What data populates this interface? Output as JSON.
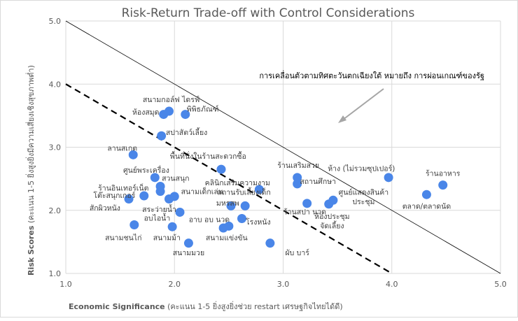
{
  "chart_data": {
    "type": "scatter",
    "title": "Risk-Return Trade-off with Control Considerations",
    "xlabel": {
      "bold": "Economic Significance",
      "rest": " (คะแนน 1-5 ยิ่งสูงยิ่งช่วย restart เศรษฐกิจไทยได้ดี)"
    },
    "ylabel": {
      "bold": "Risk Scores",
      "rest": " (คะแนน 1-5 ยิ่งสูงยิ่งมีความเสี่ยงเชิงสุขภาพต่ำ)"
    },
    "xlim": [
      1,
      5
    ],
    "ylim": [
      1,
      5
    ],
    "xticks": [
      "1.0",
      "2.0",
      "3.0",
      "4.0",
      "5.0"
    ],
    "yticks": [
      "1.0",
      "2.0",
      "3.0",
      "4.0",
      "5.0"
    ],
    "grid": true,
    "marker_color": "#4A86E8",
    "annotation": "การเคลื่อนตัวตามทิศตะวันตกเฉียงใต้ หมายถึง การผ่อนเกณฑ์ของรัฐ",
    "lines": [
      {
        "style": "solid",
        "from": [
          1,
          5
        ],
        "to": [
          5,
          1
        ]
      },
      {
        "style": "dashed",
        "from": [
          1,
          4
        ],
        "to": [
          4,
          1
        ]
      }
    ],
    "points": [
      {
        "x": 1.9,
        "y": 3.52,
        "label": "ห้องสมุด",
        "anchor": "end",
        "lx": 1.86,
        "ly": 3.56
      },
      {
        "x": 1.95,
        "y": 3.57,
        "label": "สนามกอล์ฟ ไดรฟ์",
        "anchor": "middle",
        "lx": 1.97,
        "ly": 3.76
      },
      {
        "x": 2.1,
        "y": 3.52,
        "label": "พิพิธภัณฑ์",
        "anchor": "middle",
        "lx": 2.26,
        "ly": 3.61
      },
      {
        "x": 1.88,
        "y": 3.18,
        "label": "สปาสัตว์เลี้ยง",
        "anchor": "start",
        "lx": 1.92,
        "ly": 3.24
      },
      {
        "x": 1.62,
        "y": 2.88,
        "label": "ลานสเกต",
        "anchor": "middle",
        "lx": 1.52,
        "ly": 2.99
      },
      {
        "x": 2.43,
        "y": 2.65,
        "label": "พื้นที่นั่งในร้านสะดวกซื้อ",
        "anchor": "middle",
        "lx": 2.31,
        "ly": 2.86
      },
      {
        "x": 1.82,
        "y": 2.52,
        "label": "ศูนย์พระเครื่อง",
        "anchor": "middle",
        "lx": 1.74,
        "ly": 2.64
      },
      {
        "x": 1.87,
        "y": 2.38,
        "label": "สวนสนุก",
        "anchor": "middle",
        "lx": 2.01,
        "ly": 2.51
      },
      {
        "x": 1.72,
        "y": 2.23,
        "label": "ร้านอินเทอร์เน็ต",
        "anchor": "middle",
        "lx": 1.53,
        "ly": 2.36
      },
      {
        "x": 1.87,
        "y": 2.3,
        "label": "โต๊ะสนุกเกอร์",
        "anchor": "end",
        "lx": 1.64,
        "ly": 2.24
      },
      {
        "x": 1.95,
        "y": 2.18,
        "label": "สนามเด็กเล่น",
        "anchor": "start",
        "lx": 2.06,
        "ly": 2.3
      },
      {
        "x": 1.58,
        "y": 2.18,
        "label": "สักผิวหนัง",
        "anchor": "middle",
        "lx": 1.36,
        "ly": 2.04
      },
      {
        "x": 2.0,
        "y": 2.22,
        "label": "สระว่ายน้ำ",
        "anchor": "middle",
        "lx": 1.86,
        "ly": 2.02
      },
      {
        "x": 2.05,
        "y": 1.97,
        "label": "อบไอน้ำ",
        "anchor": "middle",
        "lx": 1.84,
        "ly": 1.88
      },
      {
        "x": 1.63,
        "y": 1.77,
        "label": "สนามชนไก่",
        "anchor": "middle",
        "lx": 1.53,
        "ly": 1.57
      },
      {
        "x": 1.98,
        "y": 1.74,
        "label": "สนามม้า",
        "anchor": "middle",
        "lx": 1.93,
        "ly": 1.57
      },
      {
        "x": 2.13,
        "y": 1.48,
        "label": "สนามมวย",
        "anchor": "middle",
        "lx": 2.13,
        "ly": 1.33
      },
      {
        "x": 2.45,
        "y": 1.72,
        "label": "อาบ อบ นวด",
        "anchor": "middle",
        "lx": 2.32,
        "ly": 1.86
      },
      {
        "x": 2.5,
        "y": 1.75,
        "label": "สนามแข่งขัน",
        "anchor": "middle",
        "lx": 2.48,
        "ly": 1.57
      },
      {
        "x": 2.52,
        "y": 2.07,
        "label": "มหรสพ",
        "anchor": "middle",
        "lx": 2.49,
        "ly": 2.12
      },
      {
        "x": 2.65,
        "y": 2.07,
        "label": "สถานรับเลี้ยงเด็ก",
        "anchor": "middle",
        "lx": 2.64,
        "ly": 2.29
      },
      {
        "x": 2.62,
        "y": 1.87,
        "label": "โรงหนัง",
        "anchor": "middle",
        "lx": 2.77,
        "ly": 1.82
      },
      {
        "x": 2.78,
        "y": 2.33,
        "label": "คลินิกเสริมความงาม",
        "anchor": "middle",
        "lx": 2.58,
        "ly": 2.44
      },
      {
        "x": 2.88,
        "y": 1.48,
        "label": "ผับ บาร์",
        "anchor": "middle",
        "lx": 3.13,
        "ly": 1.33
      },
      {
        "x": 3.13,
        "y": 2.52,
        "label": "ร้านเสริมสวย",
        "anchor": "middle",
        "lx": 3.14,
        "ly": 2.72
      },
      {
        "x": 3.13,
        "y": 2.42,
        "label": "สถานศึกษา",
        "anchor": "middle",
        "lx": 3.32,
        "ly": 2.46
      },
      {
        "x": 3.22,
        "y": 2.11,
        "label": "ร้านสปา นวด",
        "anchor": "middle",
        "lx": 3.2,
        "ly": 1.98
      },
      {
        "x": 3.42,
        "y": 2.1,
        "label": "ห้องประชุม",
        "anchor": "middle",
        "lx": 3.45,
        "ly": 1.91
      },
      {
        "x": 3.46,
        "y": 2.16,
        "label": "ศูนย์แสดงสินค้า",
        "anchor": "middle",
        "lx": 3.74,
        "ly": 2.29
      },
      {
        "x": 3.46,
        "y": 2.16,
        "label": "ประชุม",
        "anchor": "middle",
        "lx": 3.74,
        "ly": 2.14
      },
      {
        "x": 3.42,
        "y": 2.1,
        "label": "จัดเลี้ยง",
        "anchor": "middle",
        "lx": 3.45,
        "ly": 1.76
      },
      {
        "x": 3.97,
        "y": 2.52,
        "label": "ห้าง (ไม่รวมซุปเปอร์)",
        "anchor": "middle",
        "lx": 3.72,
        "ly": 2.67
      },
      {
        "x": 4.47,
        "y": 2.4,
        "label": "ร้านอาหาร",
        "anchor": "middle",
        "lx": 4.47,
        "ly": 2.59
      },
      {
        "x": 4.32,
        "y": 2.25,
        "label": "ตลาด/ตลาดนัด",
        "anchor": "middle",
        "lx": 4.32,
        "ly": 2.07
      }
    ]
  }
}
